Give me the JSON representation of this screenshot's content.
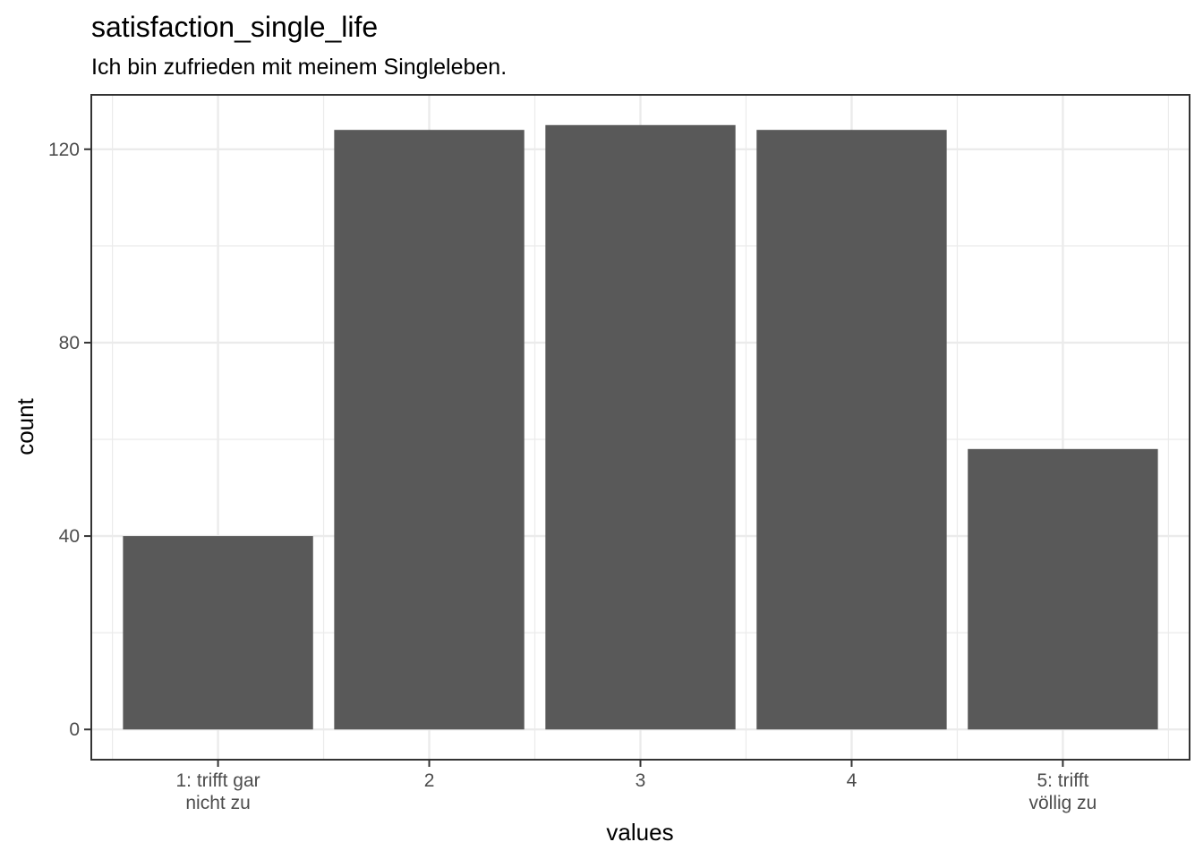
{
  "chart_data": {
    "type": "bar",
    "title": "satisfaction_single_life",
    "subtitle": "Ich bin zufrieden mit meinem Singleleben.",
    "xlabel": "values",
    "ylabel": "count",
    "categories": [
      [
        "1: trifft gar",
        "nicht zu"
      ],
      [
        "2"
      ],
      [
        "3"
      ],
      [
        "4"
      ],
      [
        "5: trifft",
        "völlig zu"
      ]
    ],
    "values": [
      40,
      124,
      125,
      124,
      58
    ],
    "ylim": [
      -6.25,
      131.25
    ],
    "yticks": [
      0,
      40,
      80,
      120
    ],
    "ytick_labels": [
      "0",
      "40",
      "80",
      "120"
    ],
    "grid": true,
    "legend": "none",
    "colors": {
      "bar": "#595959",
      "grid": "#ebebeb",
      "panel_border": "#333333",
      "background": "#ffffff"
    }
  }
}
